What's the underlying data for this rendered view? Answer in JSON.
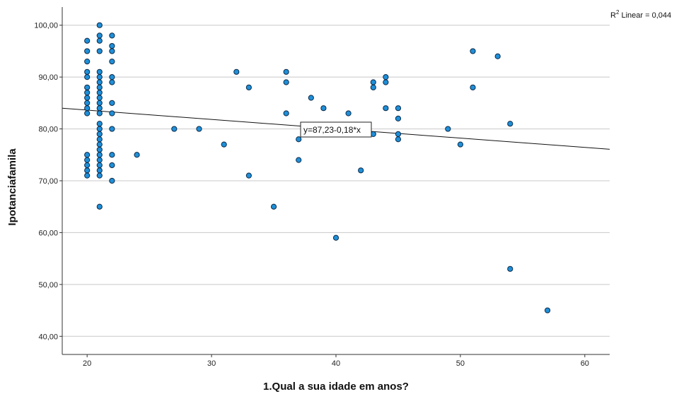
{
  "chart_data": {
    "type": "scatter",
    "xlabel": "1.Qual a sua idade em anos?",
    "ylabel": "Ipotanciafamila",
    "xlim": [
      18,
      62
    ],
    "ylim": [
      36.5,
      103.5
    ],
    "x_ticks": [
      20,
      30,
      40,
      50,
      60
    ],
    "y_ticks": [
      40,
      50,
      60,
      70,
      80,
      90,
      100
    ],
    "y_tick_labels": [
      "40,00",
      "50,00",
      "60,00",
      "70,00",
      "80,00",
      "90,00",
      "100,00"
    ],
    "grid": "horizontal",
    "point_color": "#1f8fd8",
    "point_edge_color": "#0b2a4a",
    "fit_line": {
      "intercept": 87.23,
      "slope": -0.18,
      "equation_label": "y=87,23-0,18*x",
      "r2_prefix": "R",
      "r2_label": " Linear = 0,044"
    },
    "points": [
      [
        20,
        97
      ],
      [
        20,
        95
      ],
      [
        20,
        93
      ],
      [
        20,
        91
      ],
      [
        20,
        90
      ],
      [
        20,
        88
      ],
      [
        20,
        87
      ],
      [
        20,
        86
      ],
      [
        20,
        85
      ],
      [
        20,
        84
      ],
      [
        20,
        83
      ],
      [
        20,
        75
      ],
      [
        20,
        74
      ],
      [
        20,
        73
      ],
      [
        20,
        72
      ],
      [
        20,
        71
      ],
      [
        21,
        100
      ],
      [
        21,
        98
      ],
      [
        21,
        97
      ],
      [
        21,
        95
      ],
      [
        21,
        91
      ],
      [
        21,
        90
      ],
      [
        21,
        89
      ],
      [
        21,
        88
      ],
      [
        21,
        87
      ],
      [
        21,
        86
      ],
      [
        21,
        85
      ],
      [
        21,
        84
      ],
      [
        21,
        83
      ],
      [
        21,
        81
      ],
      [
        21,
        80
      ],
      [
        21,
        79
      ],
      [
        21,
        78
      ],
      [
        21,
        77
      ],
      [
        21,
        76
      ],
      [
        21,
        75
      ],
      [
        21,
        74
      ],
      [
        21,
        73
      ],
      [
        21,
        72
      ],
      [
        21,
        71
      ],
      [
        21,
        65
      ],
      [
        22,
        98
      ],
      [
        22,
        96
      ],
      [
        22,
        95
      ],
      [
        22,
        93
      ],
      [
        22,
        90
      ],
      [
        22,
        89
      ],
      [
        22,
        85
      ],
      [
        22,
        83
      ],
      [
        22,
        80
      ],
      [
        22,
        75
      ],
      [
        22,
        73
      ],
      [
        22,
        70
      ],
      [
        24,
        75
      ],
      [
        27,
        80
      ],
      [
        29,
        80
      ],
      [
        31,
        77
      ],
      [
        32,
        91
      ],
      [
        33,
        88
      ],
      [
        33,
        71
      ],
      [
        35,
        65
      ],
      [
        36,
        91
      ],
      [
        36,
        89
      ],
      [
        36,
        83
      ],
      [
        37,
        78
      ],
      [
        37,
        74
      ],
      [
        38,
        86
      ],
      [
        39,
        84
      ],
      [
        40,
        59
      ],
      [
        41,
        83
      ],
      [
        42,
        72
      ],
      [
        43,
        89
      ],
      [
        43,
        88
      ],
      [
        43,
        79
      ],
      [
        44,
        90
      ],
      [
        44,
        89
      ],
      [
        44,
        84
      ],
      [
        45,
        84
      ],
      [
        45,
        82
      ],
      [
        45,
        79
      ],
      [
        45,
        78
      ],
      [
        49,
        80
      ],
      [
        50,
        77
      ],
      [
        51,
        95
      ],
      [
        51,
        88
      ],
      [
        53,
        94
      ],
      [
        54,
        81
      ],
      [
        54,
        53
      ],
      [
        57,
        45
      ]
    ]
  }
}
